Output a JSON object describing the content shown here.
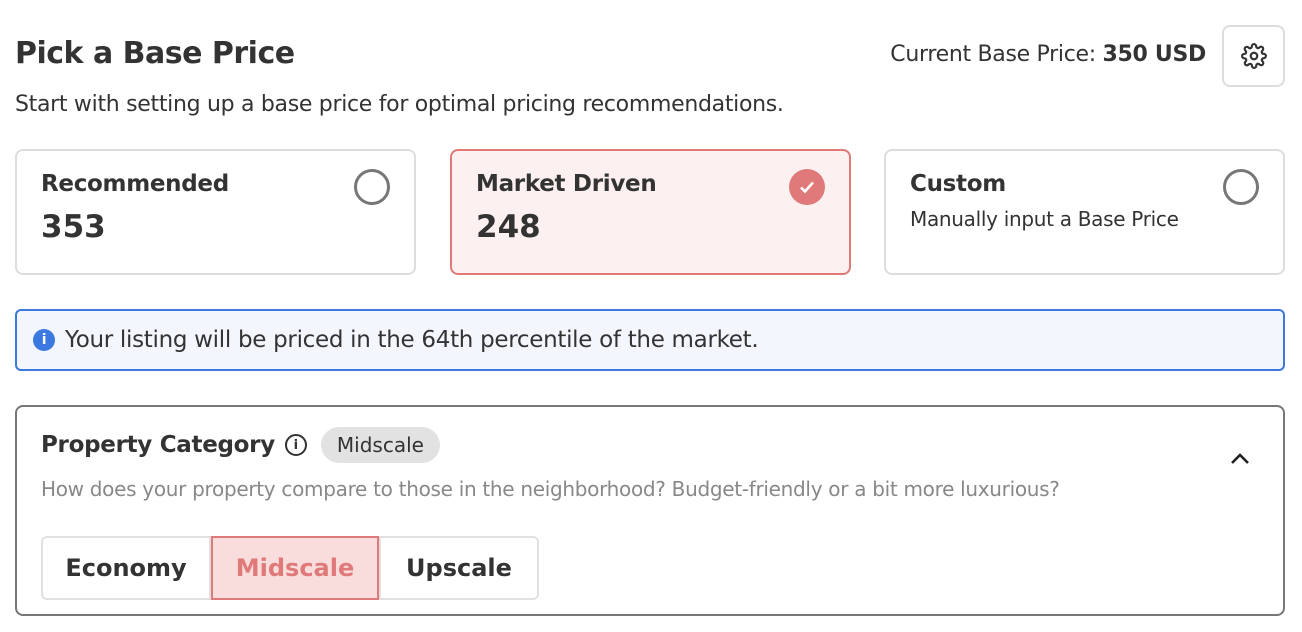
{
  "header": {
    "title": "Pick a Base Price",
    "subtitle": "Start with setting up a base price for optimal pricing recommendations.",
    "current_label": "Current Base Price:",
    "current_value": "350 USD",
    "settings_icon": "gear-icon"
  },
  "options": [
    {
      "label": "Recommended",
      "value": "353",
      "selected": false
    },
    {
      "label": "Market Driven",
      "value": "248",
      "selected": true
    },
    {
      "label": "Custom",
      "description": "Manually input a Base Price",
      "selected": false
    }
  ],
  "info": {
    "icon": "info-icon",
    "text": "Your listing will be priced in the 64th percentile of the market."
  },
  "category": {
    "title": "Property Category",
    "badge": "Midscale",
    "question": "How does your property compare to those in the neighborhood? Budget-friendly or a bit more luxurious?",
    "choices": [
      "Economy",
      "Midscale",
      "Upscale"
    ],
    "selected": "Midscale",
    "expanded": true
  },
  "colors": {
    "accent": "#e07a7a",
    "accent_bg": "#fcf0f0",
    "info": "#3b78e0",
    "info_bg": "#f3f6fd"
  }
}
